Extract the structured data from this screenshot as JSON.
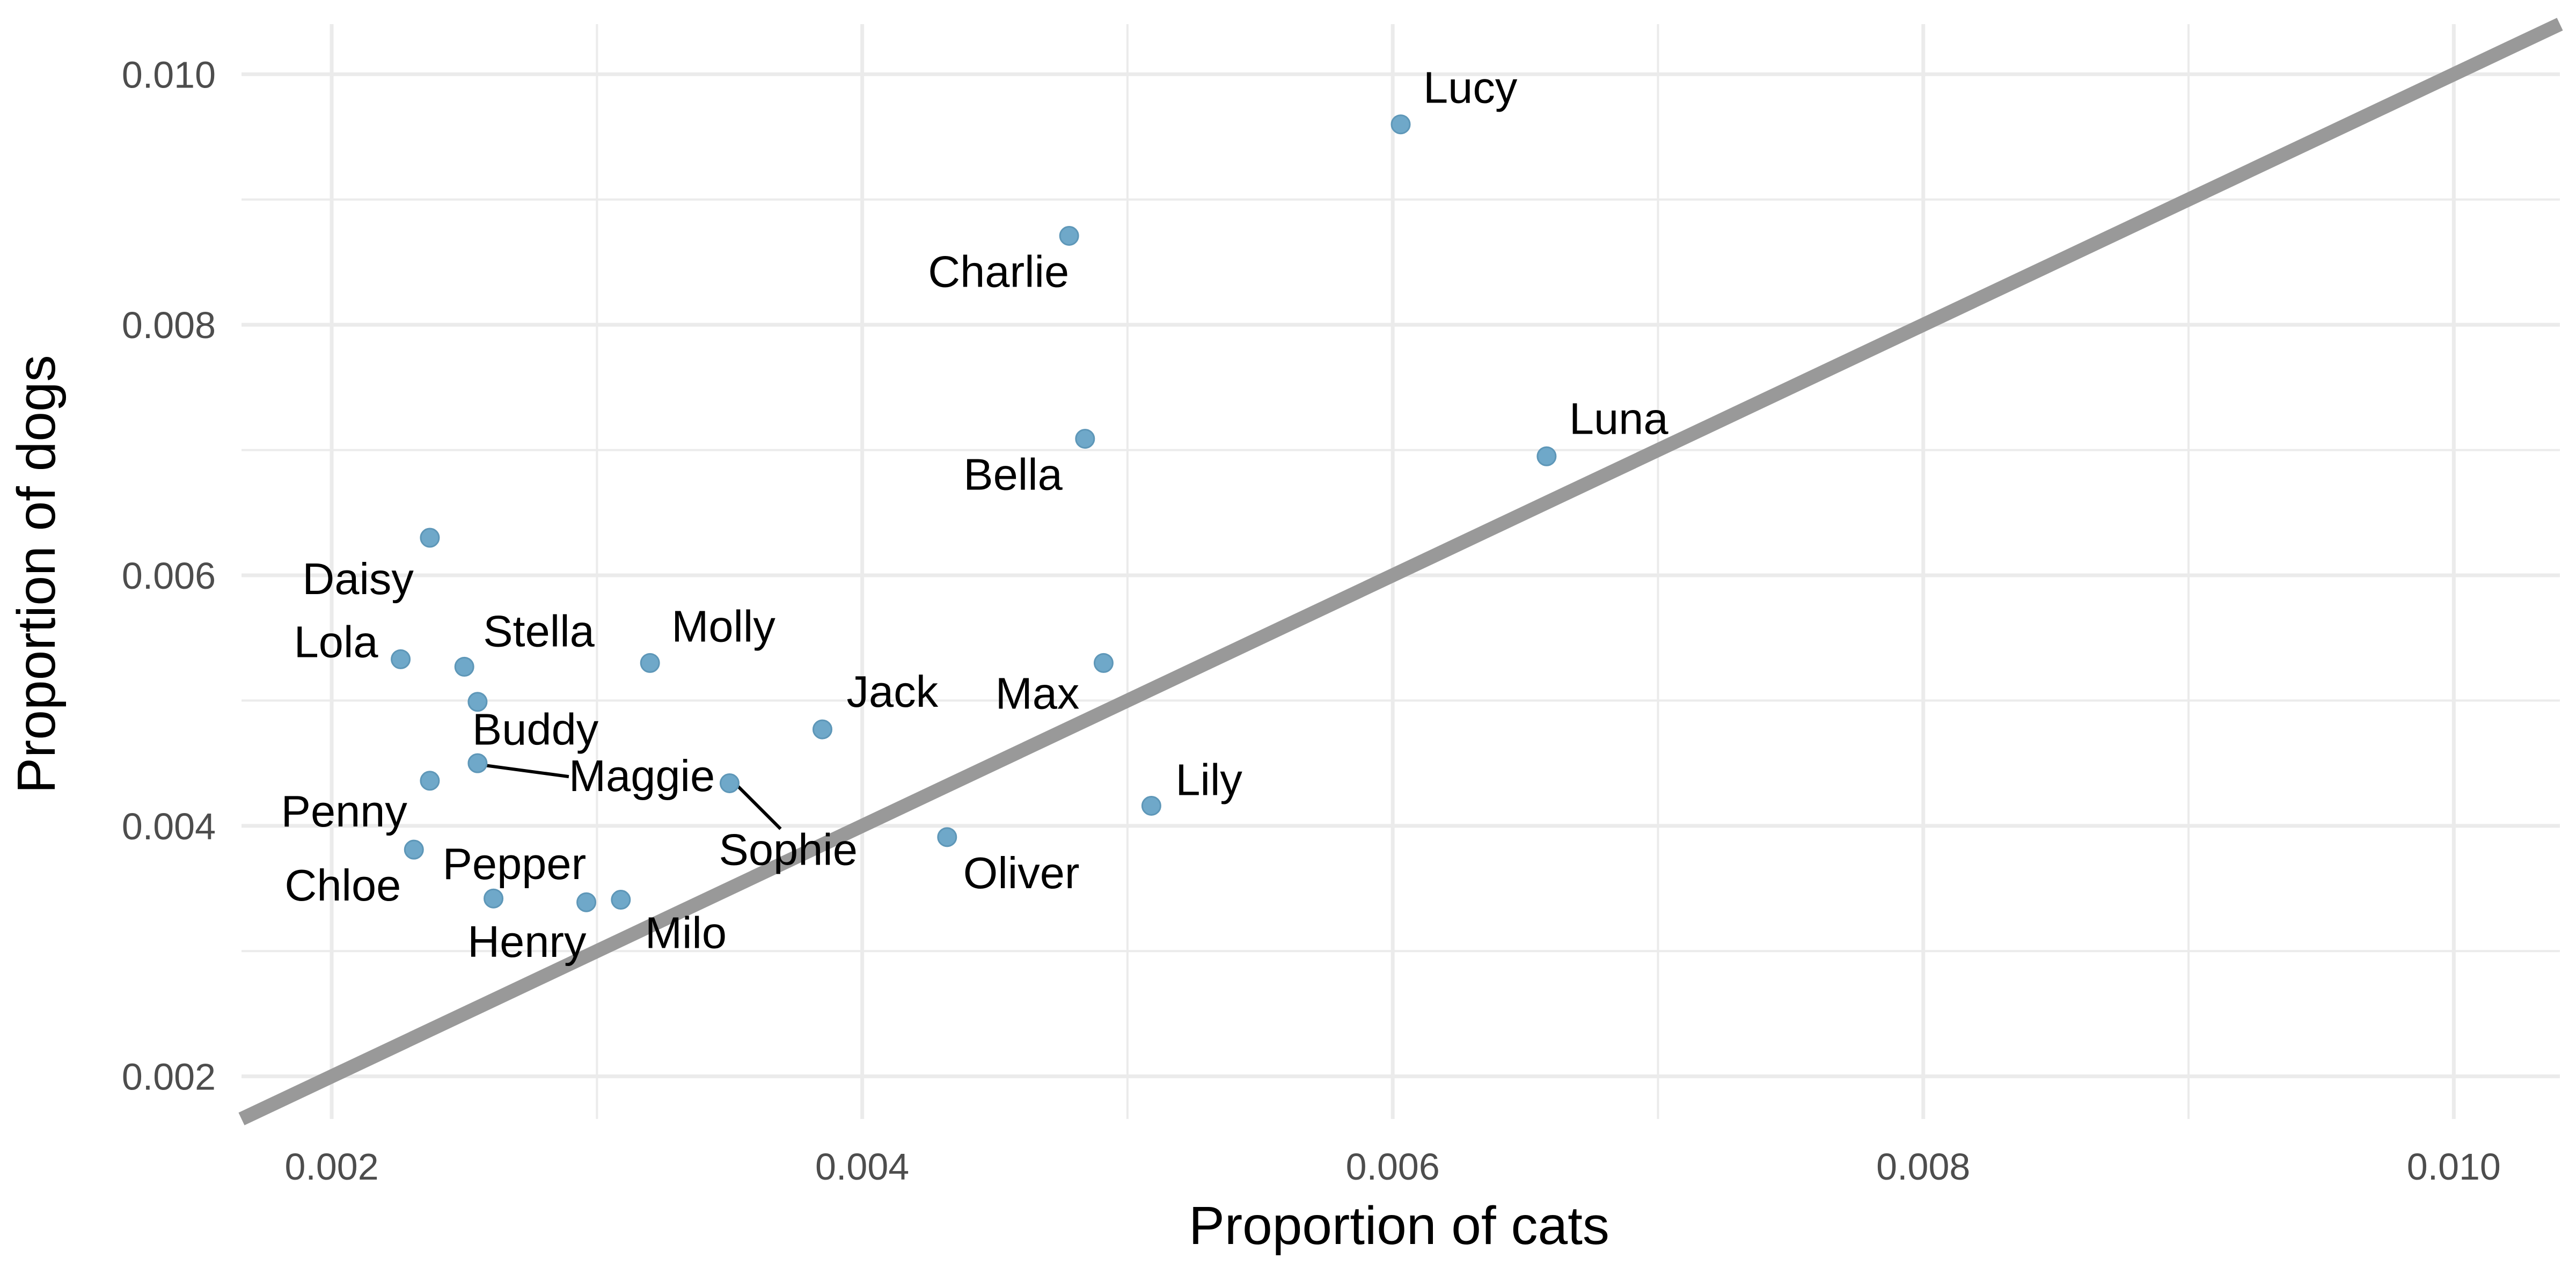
{
  "chart_data": {
    "type": "scatter",
    "xlabel": "Proportion of cats",
    "ylabel": "Proportion of dogs",
    "xlim": [
      0.00166,
      0.0104
    ],
    "ylim": [
      0.00166,
      0.0104
    ],
    "x_ticks": [
      "0.002",
      "0.004",
      "0.006",
      "0.008",
      "0.010"
    ],
    "y_ticks": [
      "0.002",
      "0.004",
      "0.006",
      "0.008",
      "0.010"
    ],
    "x_tick_values": [
      0.002,
      0.004,
      0.006,
      0.008,
      0.01
    ],
    "y_tick_values": [
      0.002,
      0.004,
      0.006,
      0.008,
      0.01
    ],
    "grid": true,
    "reference_line": {
      "type": "identity",
      "slope": 1,
      "intercept": 0,
      "color": "#999999"
    },
    "point_color": "#6fa8c9",
    "points": [
      {
        "name": "Lucy",
        "x": 0.00603,
        "y": 0.0096
      },
      {
        "name": "Charlie",
        "x": 0.00478,
        "y": 0.00871
      },
      {
        "name": "Luna",
        "x": 0.00658,
        "y": 0.00695
      },
      {
        "name": "Bella",
        "x": 0.00484,
        "y": 0.00709
      },
      {
        "name": "Daisy",
        "x": 0.00237,
        "y": 0.0063
      },
      {
        "name": "Lola",
        "x": 0.00226,
        "y": 0.00533
      },
      {
        "name": "Stella",
        "x": 0.0025,
        "y": 0.00527
      },
      {
        "name": "Molly",
        "x": 0.0032,
        "y": 0.0053
      },
      {
        "name": "Max",
        "x": 0.00491,
        "y": 0.0053
      },
      {
        "name": "Buddy",
        "x": 0.00255,
        "y": 0.00499
      },
      {
        "name": "Jack",
        "x": 0.00385,
        "y": 0.00477
      },
      {
        "name": "Maggie",
        "x": 0.00255,
        "y": 0.0045
      },
      {
        "name": "Penny",
        "x": 0.00237,
        "y": 0.00436
      },
      {
        "name": "Sophie",
        "x": 0.0035,
        "y": 0.00434
      },
      {
        "name": "Lily",
        "x": 0.00509,
        "y": 0.00416
      },
      {
        "name": "Oliver",
        "x": 0.00432,
        "y": 0.00391
      },
      {
        "name": "Chloe",
        "x": 0.00231,
        "y": 0.00381
      },
      {
        "name": "Pepper",
        "x": 0.00261,
        "y": 0.00342
      },
      {
        "name": "Henry",
        "x": 0.00296,
        "y": 0.00339
      },
      {
        "name": "Milo",
        "x": 0.00309,
        "y": 0.00341
      }
    ]
  }
}
